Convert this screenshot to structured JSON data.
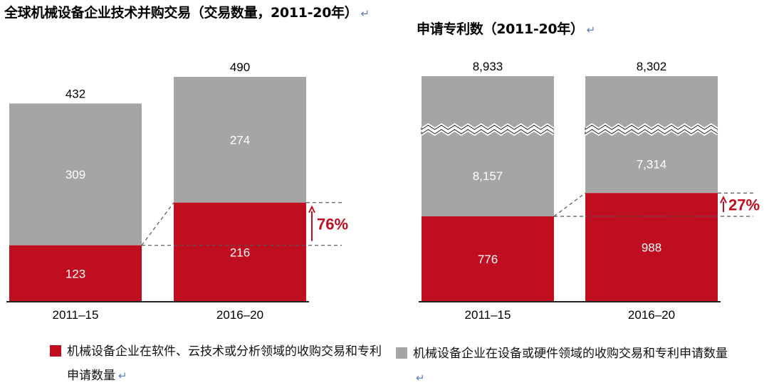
{
  "titles": {
    "left": "全球机械设备企业技术并购交易（交易数量，2011-20年）",
    "right": "申请专利数（2011-20年）",
    "return_mark": "↵"
  },
  "colors": {
    "software": "#be0e20",
    "hardware": "#a5a5a5",
    "growth_text": "#be0e20"
  },
  "chart_data": [
    {
      "type": "bar",
      "stacked": true,
      "title": "全球机械设备企业技术并购交易（交易数量，2011-20年）",
      "categories": [
        "2011–15",
        "2016–20"
      ],
      "series": [
        {
          "name": "机械设备企业在软件、云技术或分析领域的收购交易和专利申请数量",
          "values": [
            123,
            216
          ]
        },
        {
          "name": "机械设备企业在设备或硬件领域的收购交易和专利申请数量",
          "values": [
            309,
            274
          ]
        }
      ],
      "totals": [
        "432",
        "490"
      ],
      "growth": "76%",
      "axis_break": false,
      "ylim": [
        0,
        490
      ]
    },
    {
      "type": "bar",
      "stacked": true,
      "title": "申请专利数（2011-20年）",
      "categories": [
        "2011–15",
        "2016–20"
      ],
      "series": [
        {
          "name": "机械设备企业在软件、云技术或分析领域的收购交易和专利申请数量",
          "values": [
            776,
            988
          ]
        },
        {
          "name": "机械设备企业在设备或硬件领域的收购交易和专利申请数量",
          "values": [
            8157,
            7314
          ]
        }
      ],
      "totals": [
        "8,933",
        "8,302"
      ],
      "growth": "27%",
      "axis_break": true
    }
  ],
  "legend": {
    "software_label": "机械设备企业在软件、云技术或分析领域的收购交易和专利申请数量",
    "hardware_label": "机械设备企业在设备或硬件领域的收购交易和专利申请数量"
  }
}
